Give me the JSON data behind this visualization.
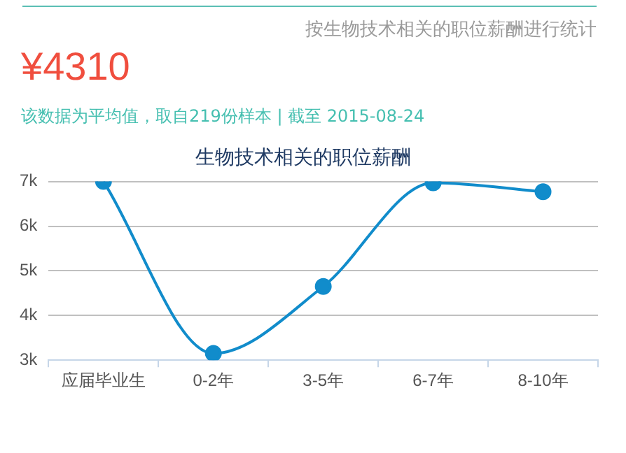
{
  "chart_data": {
    "type": "line",
    "title": "生物技术相关的职位薪酬",
    "annotations": [
      "按生物技术相关的职位薪酬进行统计",
      "¥4310",
      "该数据为平均值，取自219份样本 | 截至 2015-08-24"
    ],
    "categories": [
      "应届毕业生",
      "0-2年",
      "3-5年",
      "6-7年",
      "8-10年"
    ],
    "series": [
      {
        "color": "#118ccb",
        "values": [
          7000,
          3150,
          4650,
          6970,
          6770
        ]
      }
    ],
    "ylim": [
      3000,
      7000
    ],
    "yticks": [
      {
        "value": 3000,
        "label": "3k"
      },
      {
        "value": 4000,
        "label": "4k"
      },
      {
        "value": 5000,
        "label": "5k"
      },
      {
        "value": 6000,
        "label": "6k"
      },
      {
        "value": 7000,
        "label": "7k"
      }
    ],
    "grid": "y",
    "legend": false,
    "marker": "circle",
    "line_style": "solid"
  }
}
